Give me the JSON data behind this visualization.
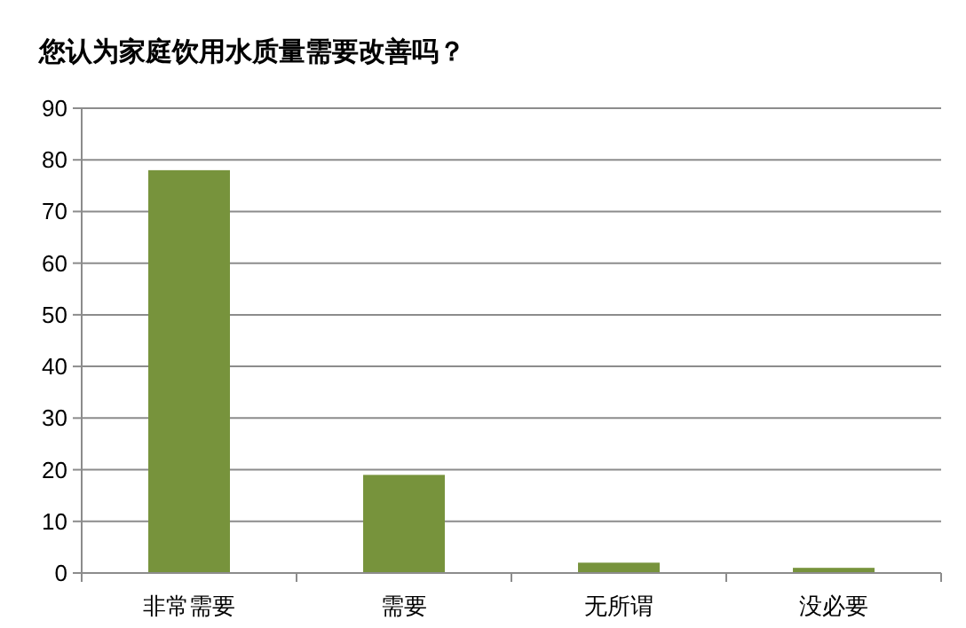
{
  "chart_data": {
    "type": "bar",
    "title": "您认为家庭饮用水质量需要改善吗？",
    "categories": [
      "非常需要",
      "需要",
      "无所谓",
      "没必要"
    ],
    "values": [
      78,
      19,
      2,
      1
    ],
    "color": "#77933c",
    "ylim": [
      0,
      90
    ],
    "yticks": [
      0,
      10,
      20,
      30,
      40,
      50,
      60,
      70,
      80,
      90
    ],
    "grid": "y"
  }
}
